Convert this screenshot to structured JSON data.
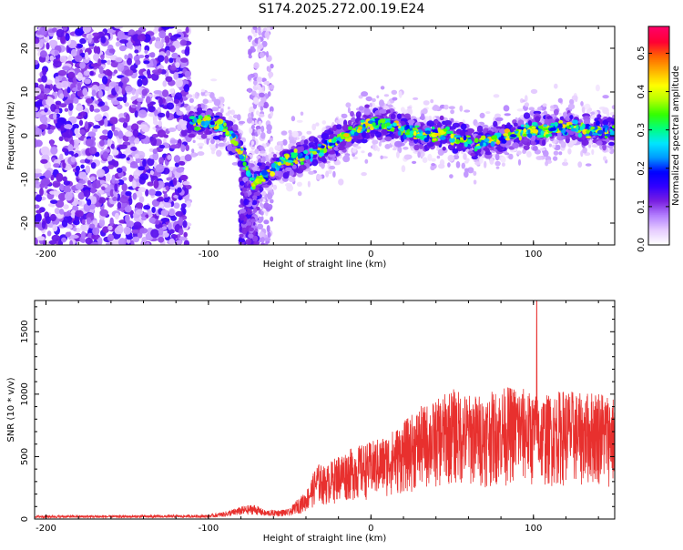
{
  "title": "S174.2025.272.00.19.E24",
  "chart_data": [
    {
      "type": "heatmap",
      "name": "spectrogram",
      "xlabel": "Height of straight line (km)",
      "ylabel": "Frequency (Hz)",
      "xlim": [
        -207,
        150
      ],
      "ylim": [
        -25,
        25
      ],
      "xticks": [
        -200,
        -100,
        0,
        100
      ],
      "yticks": [
        -20,
        -10,
        0,
        10,
        20
      ],
      "colorbar": {
        "label": "Normalized spectral amplitude",
        "range": [
          0.0,
          0.57
        ],
        "ticks": [
          0.0,
          0.1,
          0.2,
          0.3,
          0.4,
          0.5
        ],
        "colors": [
          "#ffffff",
          "#e6ccff",
          "#b380ff",
          "#7a1fe0",
          "#3300ff",
          "#0000ff",
          "#0099ff",
          "#00e6ff",
          "#00ff80",
          "#33ff00",
          "#b3ff00",
          "#ffff00",
          "#ffb300",
          "#ff6600",
          "#ff0033",
          "#ff0066"
        ]
      },
      "signal_track": [
        {
          "x": -112,
          "y": 3
        },
        {
          "x": -100,
          "y": 3
        },
        {
          "x": -90,
          "y": 2
        },
        {
          "x": -82,
          "y": -2
        },
        {
          "x": -76,
          "y": -8
        },
        {
          "x": -72,
          "y": -11
        },
        {
          "x": -65,
          "y": -9
        },
        {
          "x": -55,
          "y": -6
        },
        {
          "x": -45,
          "y": -5
        },
        {
          "x": -35,
          "y": -4
        },
        {
          "x": -25,
          "y": -2
        },
        {
          "x": -15,
          "y": 0
        },
        {
          "x": -5,
          "y": 2
        },
        {
          "x": 0,
          "y": 3
        },
        {
          "x": 5,
          "y": 3
        },
        {
          "x": 15,
          "y": 2
        },
        {
          "x": 25,
          "y": 1
        },
        {
          "x": 35,
          "y": 0
        },
        {
          "x": 45,
          "y": 1
        },
        {
          "x": 55,
          "y": -1
        },
        {
          "x": 65,
          "y": -2
        },
        {
          "x": 75,
          "y": -1
        },
        {
          "x": 85,
          "y": 0
        },
        {
          "x": 95,
          "y": 1
        },
        {
          "x": 105,
          "y": 1
        },
        {
          "x": 115,
          "y": 2
        },
        {
          "x": 125,
          "y": 2
        },
        {
          "x": 135,
          "y": 1
        },
        {
          "x": 145,
          "y": 1
        },
        {
          "x": 150,
          "y": 1
        }
      ]
    },
    {
      "type": "line",
      "name": "snr",
      "xlabel": "Height of straight line (km)",
      "ylabel": "SNR (10 * v/v)",
      "xlim": [
        -207,
        150
      ],
      "ylim": [
        0,
        1750
      ],
      "xticks": [
        -200,
        -100,
        0,
        100
      ],
      "yticks": [
        0,
        500,
        1000,
        1500
      ],
      "color": "#e8302e",
      "envelope": [
        {
          "x": -207,
          "y": 30
        },
        {
          "x": -150,
          "y": 30
        },
        {
          "x": -100,
          "y": 35
        },
        {
          "x": -90,
          "y": 60
        },
        {
          "x": -80,
          "y": 100
        },
        {
          "x": -72,
          "y": 120
        },
        {
          "x": -65,
          "y": 70
        },
        {
          "x": -50,
          "y": 80
        },
        {
          "x": -46,
          "y": 150
        },
        {
          "x": -40,
          "y": 220
        },
        {
          "x": -33,
          "y": 450
        },
        {
          "x": -28,
          "y": 420
        },
        {
          "x": -20,
          "y": 520
        },
        {
          "x": -10,
          "y": 580
        },
        {
          "x": 0,
          "y": 620
        },
        {
          "x": 10,
          "y": 680
        },
        {
          "x": 20,
          "y": 780
        },
        {
          "x": 30,
          "y": 900
        },
        {
          "x": 40,
          "y": 950
        },
        {
          "x": 50,
          "y": 1050
        },
        {
          "x": 60,
          "y": 1000
        },
        {
          "x": 70,
          "y": 1000
        },
        {
          "x": 80,
          "y": 1050
        },
        {
          "x": 90,
          "y": 1080
        },
        {
          "x": 100,
          "y": 1000
        },
        {
          "x": 110,
          "y": 1000
        },
        {
          "x": 120,
          "y": 1050
        },
        {
          "x": 130,
          "y": 1000
        },
        {
          "x": 140,
          "y": 1050
        },
        {
          "x": 150,
          "y": 980
        }
      ],
      "spike": {
        "x": 102,
        "y": 1750
      }
    }
  ]
}
